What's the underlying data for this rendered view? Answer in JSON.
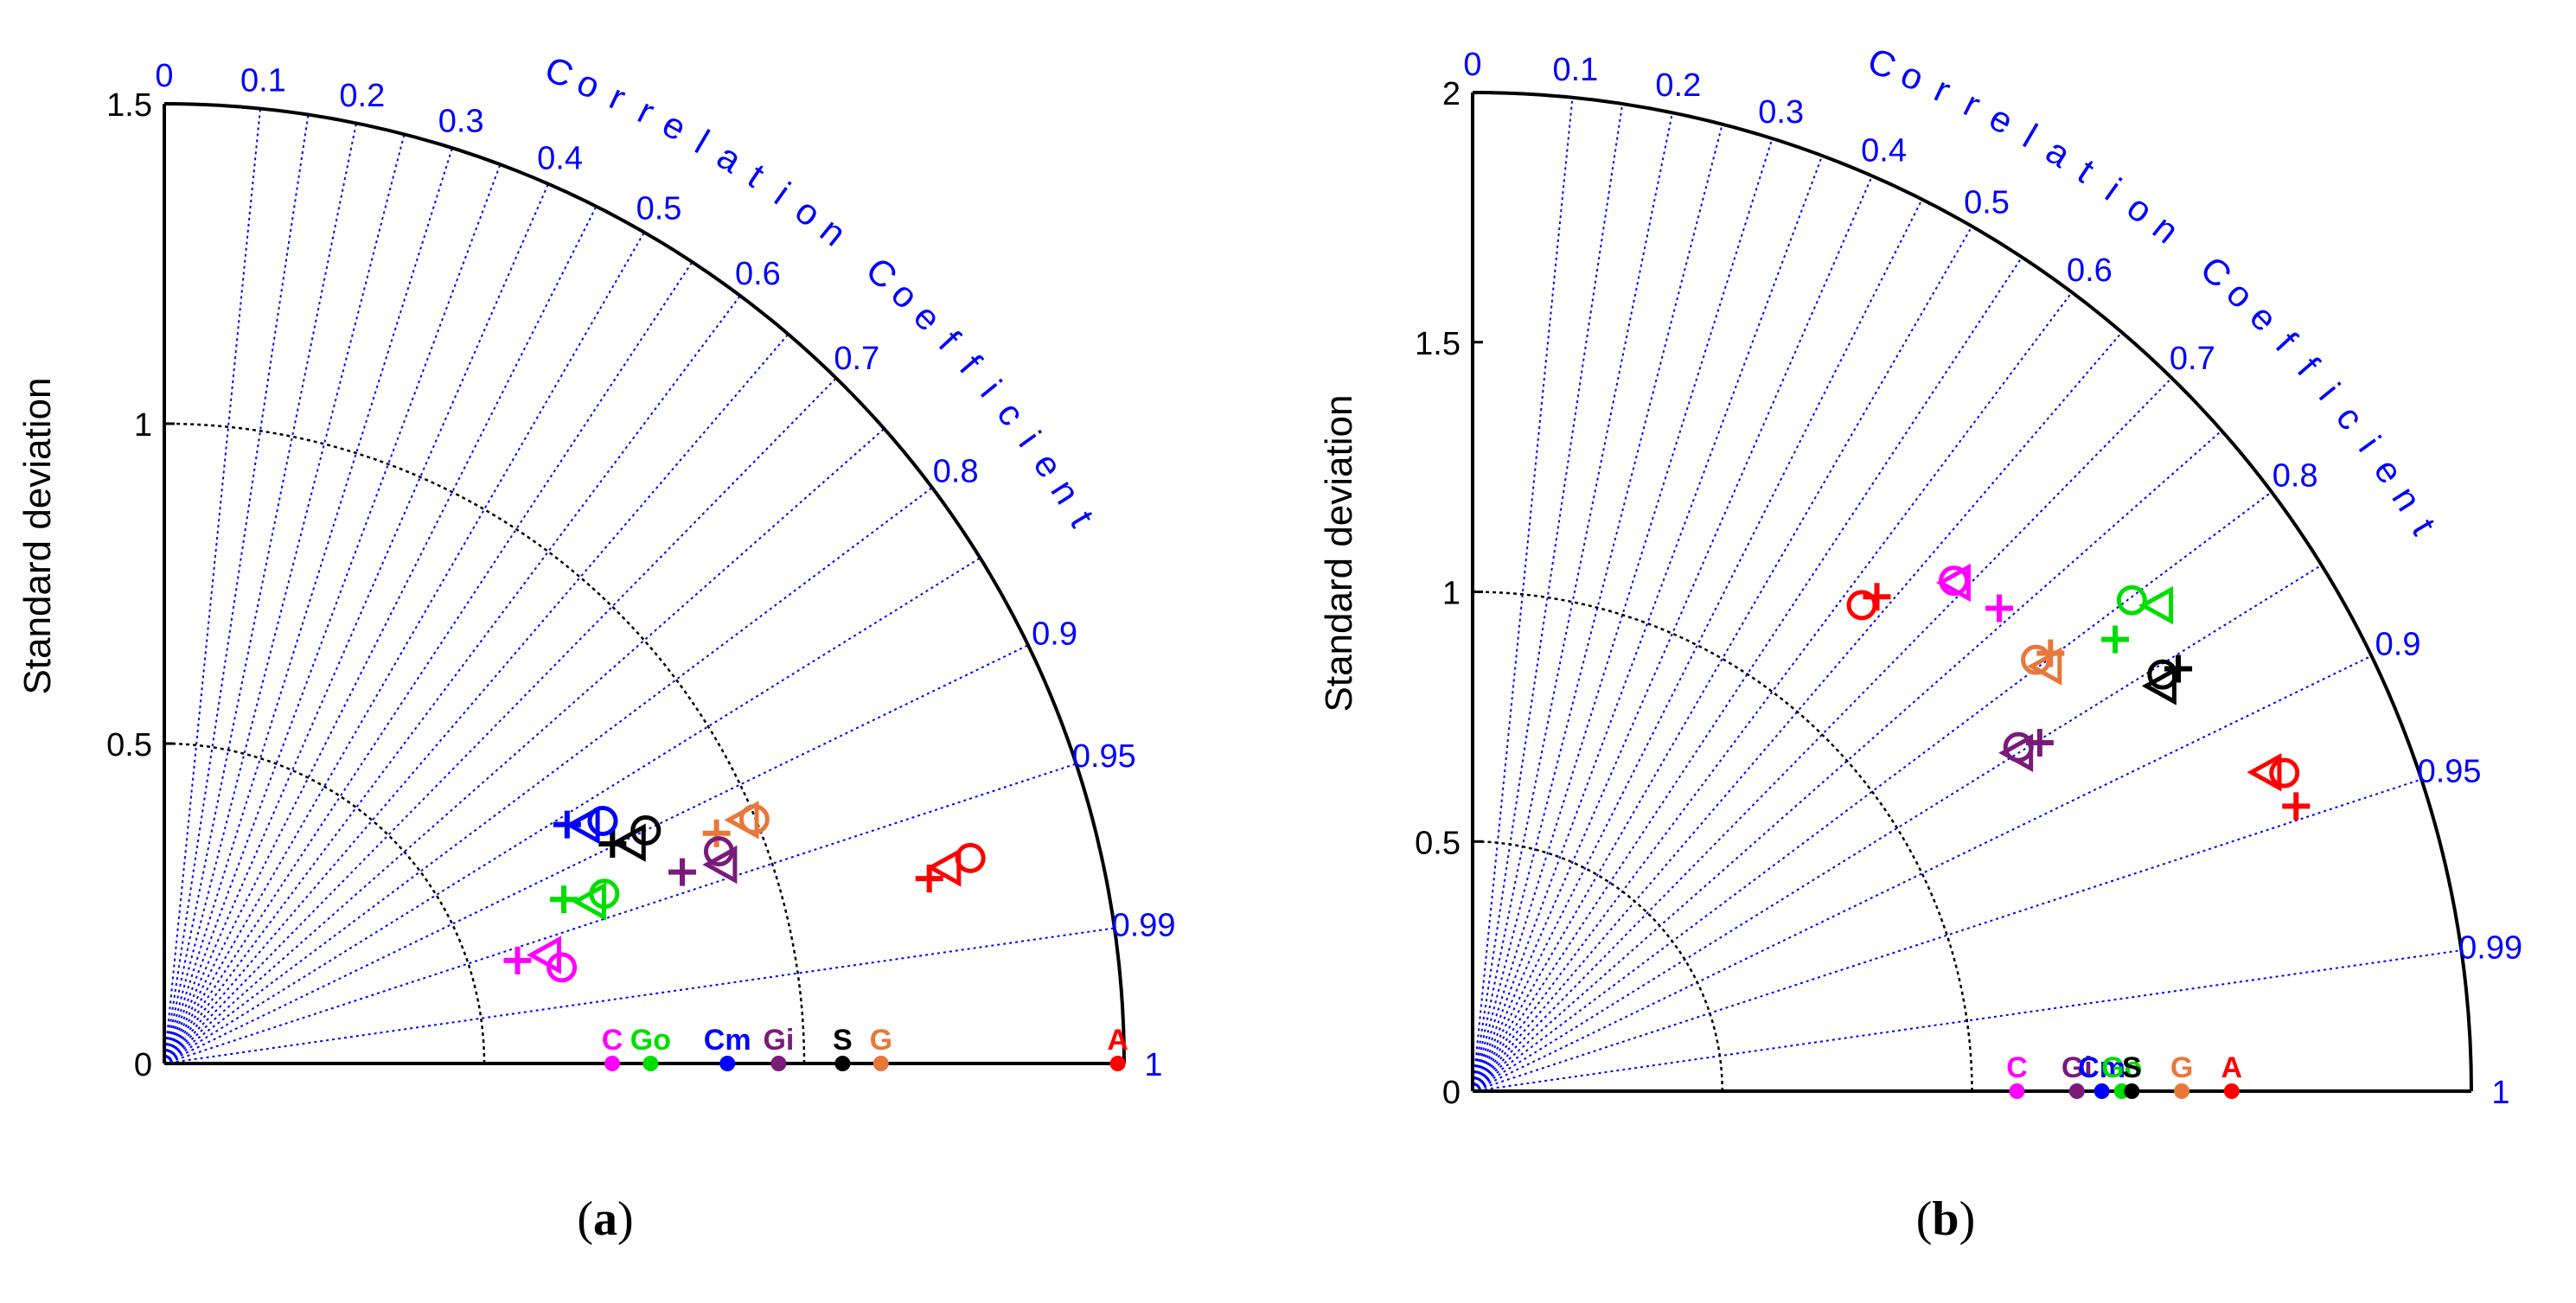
{
  "colors": {
    "red": "#ff0000",
    "orange": "#e8773a",
    "black": "#000000",
    "purple": "#7a1a7a",
    "blue": "#0000ff",
    "green": "#00dd00",
    "magenta": "#ff00ff",
    "axis_blue": "#0000ff"
  },
  "chart_data": [
    {
      "type": "taylor",
      "panel_label": "a",
      "ylabel": "Standard deviation",
      "arc_label": "Correlation Coefficient",
      "std_max": 1.5,
      "std_ticks": [
        0,
        0.5,
        1,
        1.5
      ],
      "std_tick_labels": [
        "0",
        "0.5",
        "1",
        "1.5"
      ],
      "rms_circle_radii": [
        0.5,
        1.0
      ],
      "corr_ticks": [
        0,
        0.1,
        0.2,
        0.3,
        0.4,
        0.5,
        0.6,
        0.7,
        0.8,
        0.9,
        0.95,
        0.99,
        1
      ],
      "corr_tick_labels": [
        "0",
        "0.1",
        "0.2",
        "0.3",
        "0.4",
        "0.5",
        "0.6",
        "0.7",
        "0.8",
        "0.9",
        "0.95",
        "0.99",
        "1"
      ],
      "reference_points": [
        {
          "label": "C",
          "std": 0.7,
          "color": "magenta"
        },
        {
          "label": "Go",
          "std": 0.76,
          "color": "green"
        },
        {
          "label": "Cm",
          "std": 0.88,
          "color": "blue"
        },
        {
          "label": "Gi",
          "std": 0.96,
          "color": "purple"
        },
        {
          "label": "S",
          "std": 1.06,
          "color": "black"
        },
        {
          "label": "G",
          "std": 1.12,
          "color": "orange"
        },
        {
          "label": "A",
          "std": 1.49,
          "color": "red"
        }
      ],
      "model_points": [
        {
          "marker": "circle",
          "color": "red",
          "std": 1.3,
          "corr": 0.969
        },
        {
          "marker": "triangle",
          "color": "red",
          "std": 1.26,
          "corr": 0.97
        },
        {
          "marker": "plus",
          "color": "red",
          "std": 1.23,
          "corr": 0.972
        },
        {
          "marker": "circle",
          "color": "orange",
          "std": 0.998,
          "corr": 0.924
        },
        {
          "marker": "triangle",
          "color": "orange",
          "std": 0.983,
          "corr": 0.922
        },
        {
          "marker": "plus",
          "color": "orange",
          "std": 0.935,
          "corr": 0.923
        },
        {
          "marker": "circle",
          "color": "black",
          "std": 0.836,
          "corr": 0.9
        },
        {
          "marker": "triangle",
          "color": "black",
          "std": 0.807,
          "corr": 0.904
        },
        {
          "marker": "plus",
          "color": "black",
          "std": 0.78,
          "corr": 0.898
        },
        {
          "marker": "circle",
          "color": "purple",
          "std": 0.928,
          "corr": 0.934
        },
        {
          "marker": "triangle",
          "color": "purple",
          "std": 0.926,
          "corr": 0.942
        },
        {
          "marker": "plus",
          "color": "purple",
          "std": 0.863,
          "corr": 0.938
        },
        {
          "marker": "circle",
          "color": "blue",
          "std": 0.783,
          "corr": 0.875
        },
        {
          "marker": "triangle",
          "color": "blue",
          "std": 0.756,
          "corr": 0.87
        },
        {
          "marker": "plus",
          "color": "blue",
          "std": 0.732,
          "corr": 0.86
        },
        {
          "marker": "circle",
          "color": "green",
          "std": 0.737,
          "corr": 0.933
        },
        {
          "marker": "triangle",
          "color": "green",
          "std": 0.714,
          "corr": 0.935
        },
        {
          "marker": "plus",
          "color": "green",
          "std": 0.675,
          "corr": 0.925
        },
        {
          "marker": "circle",
          "color": "magenta",
          "std": 0.639,
          "corr": 0.972
        },
        {
          "marker": "triangle",
          "color": "magenta",
          "std": 0.621,
          "corr": 0.962
        },
        {
          "marker": "plus",
          "color": "magenta",
          "std": 0.575,
          "corr": 0.96
        }
      ]
    },
    {
      "type": "taylor",
      "panel_label": "b",
      "ylabel": "Standard deviation",
      "arc_label": "Correlation Coefficient",
      "std_max": 2,
      "std_ticks": [
        0,
        0.5,
        1,
        1.5,
        2
      ],
      "std_tick_labels": [
        "0",
        "0.5",
        "1",
        "1.5",
        "2"
      ],
      "rms_circle_radii": [
        0.5,
        1.0
      ],
      "corr_ticks": [
        0,
        0.1,
        0.2,
        0.3,
        0.4,
        0.5,
        0.6,
        0.7,
        0.8,
        0.9,
        0.95,
        0.99,
        1
      ],
      "corr_tick_labels": [
        "0",
        "0.1",
        "0.2",
        "0.3",
        "0.4",
        "0.5",
        "0.6",
        "0.7",
        "0.8",
        "0.9",
        "0.95",
        "0.99",
        "1"
      ],
      "reference_points": [
        {
          "label": "C",
          "std": 1.09,
          "color": "magenta"
        },
        {
          "label": "Gi",
          "std": 1.21,
          "color": "purple"
        },
        {
          "label": "Cm",
          "std": 1.26,
          "color": "blue"
        },
        {
          "label": "Go",
          "std": 1.3,
          "color": "green"
        },
        {
          "label": "S",
          "std": 1.32,
          "color": "black"
        },
        {
          "label": "G",
          "std": 1.42,
          "color": "orange"
        },
        {
          "label": "A",
          "std": 1.52,
          "color": "red"
        }
      ],
      "model_points": [
        {
          "marker": "circle",
          "color": "green",
          "std": 1.646,
          "corr": 0.802
        },
        {
          "marker": "triangle",
          "color": "green",
          "std": 1.683,
          "corr": 0.816
        },
        {
          "marker": "plus",
          "color": "green",
          "std": 1.573,
          "corr": 0.818
        },
        {
          "marker": "circle",
          "color": "magenta",
          "std": 1.405,
          "corr": 0.686
        },
        {
          "marker": "triangle",
          "color": "magenta",
          "std": 1.405,
          "corr": 0.689
        },
        {
          "marker": "plus",
          "color": "magenta",
          "std": 1.431,
          "corr": 0.737
        },
        {
          "marker": "circle",
          "color": "red",
          "std": 1.247,
          "corr": 0.625
        },
        {
          "marker": "plus",
          "color": "red",
          "std": 1.279,
          "corr": 0.633
        },
        {
          "marker": "circle",
          "color": "orange",
          "std": 1.421,
          "corr": 0.794
        },
        {
          "marker": "triangle",
          "color": "orange",
          "std": 1.431,
          "corr": 0.804
        },
        {
          "marker": "plus",
          "color": "orange",
          "std": 1.452,
          "corr": 0.797
        },
        {
          "marker": "circle",
          "color": "black",
          "std": 1.614,
          "corr": 0.856
        },
        {
          "marker": "triangle",
          "color": "black",
          "std": 1.601,
          "corr": 0.862
        },
        {
          "marker": "plus",
          "color": "black",
          "std": 1.647,
          "corr": 0.858
        },
        {
          "marker": "circle",
          "color": "purple",
          "std": 1.292,
          "corr": 0.846
        },
        {
          "marker": "triangle",
          "color": "purple",
          "std": 1.286,
          "corr": 0.85
        },
        {
          "marker": "plus",
          "color": "purple",
          "std": 1.333,
          "corr": 0.852
        },
        {
          "marker": "circle",
          "color": "red",
          "std": 1.746,
          "corr": 0.931
        },
        {
          "marker": "triangle",
          "color": "red",
          "std": 1.714,
          "corr": 0.928
        },
        {
          "marker": "plus",
          "color": "red",
          "std": 1.745,
          "corr": 0.945
        }
      ]
    }
  ]
}
